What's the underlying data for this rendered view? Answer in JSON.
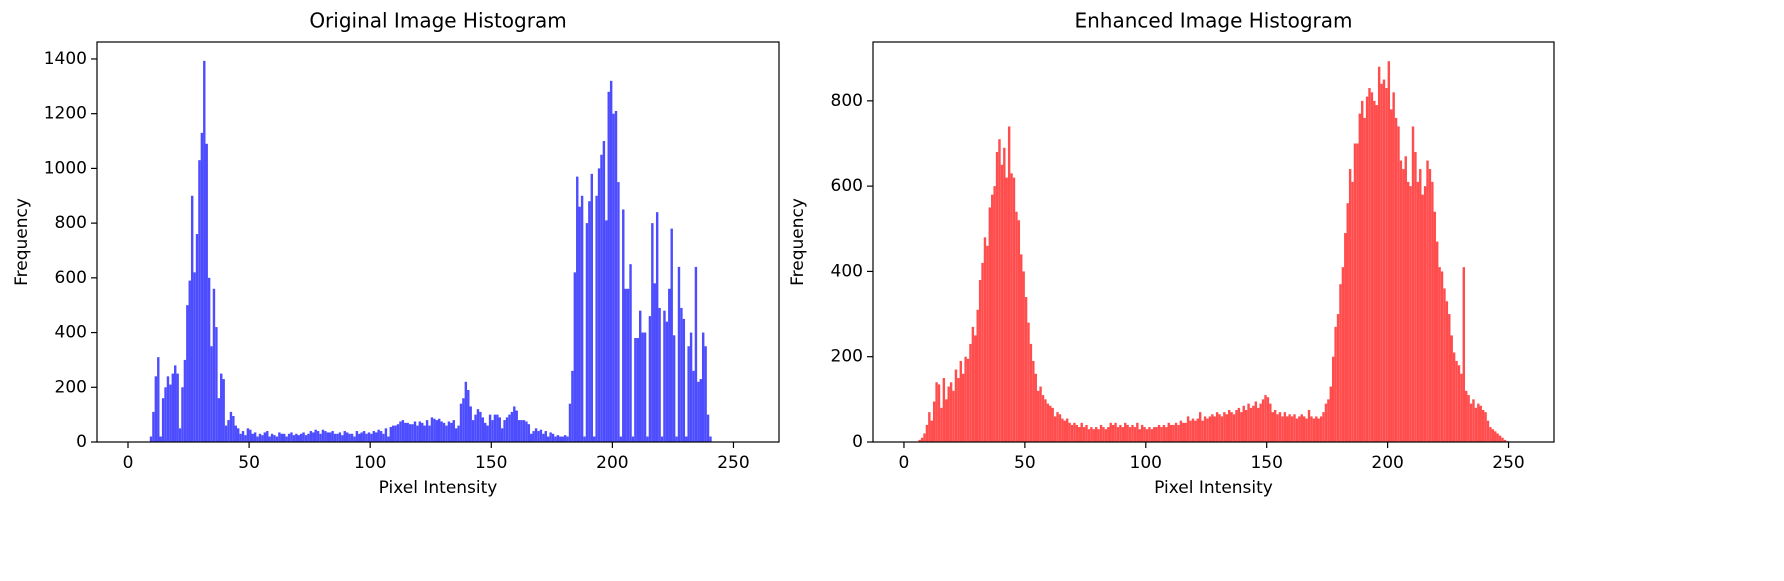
{
  "chart_data": [
    {
      "type": "histogram",
      "title": "Original Image Histogram",
      "xlabel": "Pixel Intensity",
      "ylabel": "Frequency",
      "color": "#4d4dff",
      "grid": false,
      "bins": [
        0,
        1,
        2,
        3,
        4,
        5,
        6,
        7,
        8,
        9,
        10,
        11,
        12,
        13,
        14,
        15,
        16,
        17,
        18,
        19,
        20,
        21,
        22,
        23,
        24,
        25,
        26,
        27,
        28,
        29,
        30,
        31,
        32,
        33,
        34,
        35,
        36,
        37,
        38,
        39,
        40,
        41,
        42,
        43,
        44,
        45,
        46,
        47,
        48,
        49,
        50,
        51,
        52,
        53,
        54,
        55,
        56,
        57,
        58,
        59,
        60,
        61,
        62,
        63,
        64,
        65,
        66,
        67,
        68,
        69,
        70,
        71,
        72,
        73,
        74,
        75,
        76,
        77,
        78,
        79,
        80,
        81,
        82,
        83,
        84,
        85,
        86,
        87,
        88,
        89,
        90,
        91,
        92,
        93,
        94,
        95,
        96,
        97,
        98,
        99,
        100,
        101,
        102,
        103,
        104,
        105,
        106,
        107,
        108,
        109,
        110,
        111,
        112,
        113,
        114,
        115,
        116,
        117,
        118,
        119,
        120,
        121,
        122,
        123,
        124,
        125,
        126,
        127,
        128,
        129,
        130,
        131,
        132,
        133,
        134,
        135,
        136,
        137,
        138,
        139,
        140,
        141,
        142,
        143,
        144,
        145,
        146,
        147,
        148,
        149,
        150,
        151,
        152,
        153,
        154,
        155,
        156,
        157,
        158,
        159,
        160,
        161,
        162,
        163,
        164,
        165,
        166,
        167,
        168,
        169,
        170,
        171,
        172,
        173,
        174,
        175,
        176,
        177,
        178,
        179,
        180,
        181,
        182,
        183,
        184,
        185,
        186,
        187,
        188,
        189,
        190,
        191,
        192,
        193,
        194,
        195,
        196,
        197,
        198,
        199,
        200,
        201,
        202,
        203,
        204,
        205,
        206,
        207,
        208,
        209,
        210,
        211,
        212,
        213,
        214,
        215,
        216,
        217,
        218,
        219,
        220,
        221,
        222,
        223,
        224,
        225,
        226,
        227,
        228,
        229,
        230,
        231,
        232,
        233,
        234,
        235,
        236,
        237,
        238,
        239,
        240,
        241,
        242,
        243,
        244,
        245,
        246,
        247,
        248,
        249,
        250,
        251,
        252,
        253,
        254,
        255,
        256
      ],
      "values": [
        0,
        0,
        0,
        0,
        0,
        0,
        0,
        0,
        0,
        20,
        110,
        240,
        310,
        20,
        160,
        200,
        240,
        210,
        250,
        280,
        250,
        50,
        200,
        300,
        500,
        590,
        900,
        620,
        760,
        1030,
        1130,
        1393,
        1090,
        600,
        350,
        560,
        420,
        160,
        250,
        230,
        60,
        80,
        110,
        95,
        60,
        50,
        30,
        40,
        25,
        50,
        45,
        30,
        35,
        20,
        30,
        25,
        35,
        40,
        20,
        30,
        25,
        20,
        35,
        30,
        30,
        20,
        30,
        35,
        25,
        30,
        25,
        30,
        35,
        25,
        30,
        40,
        35,
        45,
        40,
        30,
        45,
        40,
        35,
        35,
        40,
        30,
        30,
        35,
        25,
        40,
        35,
        30,
        30,
        20,
        40,
        30,
        35,
        40,
        30,
        35,
        30,
        40,
        35,
        45,
        40,
        30,
        50,
        20,
        55,
        60,
        60,
        65,
        75,
        80,
        70,
        70,
        65,
        65,
        75,
        60,
        75,
        70,
        60,
        80,
        60,
        90,
        85,
        80,
        85,
        75,
        70,
        60,
        75,
        70,
        80,
        50,
        60,
        140,
        160,
        220,
        190,
        130,
        80,
        100,
        120,
        110,
        90,
        70,
        60,
        100,
        80,
        100,
        100,
        90,
        50,
        80,
        90,
        100,
        110,
        130,
        115,
        80,
        80,
        80,
        75,
        65,
        30,
        40,
        50,
        40,
        45,
        30,
        40,
        20,
        35,
        30,
        20,
        25,
        20,
        20,
        25,
        20,
        140,
        260,
        620,
        970,
        860,
        900,
        20,
        800,
        880,
        980,
        20,
        900,
        1000,
        1050,
        1100,
        810,
        1280,
        1320,
        1200,
        1210,
        950,
        20,
        850,
        560,
        560,
        650,
        20,
        380,
        380,
        480,
        400,
        400,
        20,
        460,
        800,
        580,
        840,
        490,
        20,
        480,
        440,
        560,
        780,
        390,
        20,
        640,
        490,
        450,
        20,
        350,
        400,
        260,
        640,
        220,
        230,
        400,
        350,
        100,
        20,
        0,
        0,
        0,
        0,
        0,
        0,
        0,
        0,
        0,
        0,
        0,
        0,
        0,
        0,
        0
      ],
      "xlim": [
        -12.8,
        268.8
      ],
      "xticks": [
        0,
        50,
        100,
        150,
        200,
        250
      ],
      "ylim": [
        0,
        1462
      ],
      "yticks": [
        0,
        200,
        400,
        600,
        800,
        1000,
        1200,
        1400
      ]
    },
    {
      "type": "histogram",
      "title": "Enhanced Image Histogram",
      "xlabel": "Pixel Intensity",
      "ylabel": "Frequency",
      "color": "#ff4d4d",
      "grid": false,
      "bins": [
        0,
        1,
        2,
        3,
        4,
        5,
        6,
        7,
        8,
        9,
        10,
        11,
        12,
        13,
        14,
        15,
        16,
        17,
        18,
        19,
        20,
        21,
        22,
        23,
        24,
        25,
        26,
        27,
        28,
        29,
        30,
        31,
        32,
        33,
        34,
        35,
        36,
        37,
        38,
        39,
        40,
        41,
        42,
        43,
        44,
        45,
        46,
        47,
        48,
        49,
        50,
        51,
        52,
        53,
        54,
        55,
        56,
        57,
        58,
        59,
        60,
        61,
        62,
        63,
        64,
        65,
        66,
        67,
        68,
        69,
        70,
        71,
        72,
        73,
        74,
        75,
        76,
        77,
        78,
        79,
        80,
        81,
        82,
        83,
        84,
        85,
        86,
        87,
        88,
        89,
        90,
        91,
        92,
        93,
        94,
        95,
        96,
        97,
        98,
        99,
        100,
        101,
        102,
        103,
        104,
        105,
        106,
        107,
        108,
        109,
        110,
        111,
        112,
        113,
        114,
        115,
        116,
        117,
        118,
        119,
        120,
        121,
        122,
        123,
        124,
        125,
        126,
        127,
        128,
        129,
        130,
        131,
        132,
        133,
        134,
        135,
        136,
        137,
        138,
        139,
        140,
        141,
        142,
        143,
        144,
        145,
        146,
        147,
        148,
        149,
        150,
        151,
        152,
        153,
        154,
        155,
        156,
        157,
        158,
        159,
        160,
        161,
        162,
        163,
        164,
        165,
        166,
        167,
        168,
        169,
        170,
        171,
        172,
        173,
        174,
        175,
        176,
        177,
        178,
        179,
        180,
        181,
        182,
        183,
        184,
        185,
        186,
        187,
        188,
        189,
        190,
        191,
        192,
        193,
        194,
        195,
        196,
        197,
        198,
        199,
        200,
        201,
        202,
        203,
        204,
        205,
        206,
        207,
        208,
        209,
        210,
        211,
        212,
        213,
        214,
        215,
        216,
        217,
        218,
        219,
        220,
        221,
        222,
        223,
        224,
        225,
        226,
        227,
        228,
        229,
        230,
        231,
        232,
        233,
        234,
        235,
        236,
        237,
        238,
        239,
        240,
        241,
        242,
        243,
        244,
        245,
        246,
        247,
        248,
        249,
        250,
        251,
        252,
        253,
        254,
        255,
        256
      ],
      "values": [
        0,
        0,
        0,
        0,
        0,
        0,
        5,
        10,
        20,
        40,
        70,
        50,
        95,
        140,
        135,
        80,
        150,
        100,
        130,
        140,
        120,
        170,
        150,
        190,
        160,
        200,
        195,
        230,
        270,
        250,
        310,
        380,
        420,
        480,
        460,
        550,
        580,
        600,
        680,
        710,
        650,
        690,
        620,
        740,
        630,
        620,
        540,
        520,
        440,
        400,
        340,
        280,
        230,
        190,
        160,
        120,
        130,
        110,
        100,
        90,
        85,
        80,
        60,
        70,
        65,
        55,
        50,
        55,
        45,
        40,
        45,
        40,
        35,
        45,
        35,
        40,
        30,
        35,
        30,
        35,
        30,
        40,
        35,
        30,
        35,
        45,
        40,
        45,
        35,
        40,
        35,
        45,
        40,
        35,
        40,
        35,
        45,
        30,
        40,
        35,
        30,
        35,
        30,
        35,
        35,
        40,
        35,
        40,
        35,
        45,
        40,
        40,
        45,
        40,
        50,
        45,
        45,
        60,
        50,
        55,
        50,
        55,
        70,
        50,
        60,
        55,
        60,
        65,
        60,
        70,
        65,
        60,
        70,
        65,
        75,
        70,
        65,
        75,
        80,
        70,
        85,
        75,
        90,
        80,
        85,
        95,
        80,
        90,
        100,
        110,
        105,
        90,
        70,
        75,
        65,
        70,
        60,
        70,
        60,
        65,
        60,
        65,
        55,
        60,
        65,
        60,
        55,
        75,
        60,
        55,
        60,
        55,
        60,
        70,
        90,
        100,
        130,
        200,
        270,
        300,
        370,
        410,
        490,
        560,
        640,
        610,
        700,
        700,
        770,
        800,
        760,
        810,
        830,
        820,
        800,
        790,
        880,
        840,
        850,
        830,
        893,
        780,
        820,
        760,
        740,
        660,
        640,
        670,
        610,
        600,
        740,
        680,
        610,
        640,
        580,
        600,
        660,
        640,
        610,
        540,
        470,
        410,
        400,
        360,
        330,
        300,
        250,
        210,
        190,
        180,
        160,
        410,
        120,
        110,
        90,
        100,
        80,
        90,
        85,
        75,
        70,
        50,
        35,
        30,
        25,
        20,
        15,
        10,
        5,
        2,
        0,
        0,
        0,
        0,
        0,
        0
      ],
      "xlim": [
        -12.8,
        268.8
      ],
      "xticks": [
        0,
        50,
        100,
        150,
        200,
        250
      ],
      "ylim": [
        0,
        938
      ],
      "yticks": [
        0,
        200,
        400,
        600,
        800
      ]
    }
  ]
}
